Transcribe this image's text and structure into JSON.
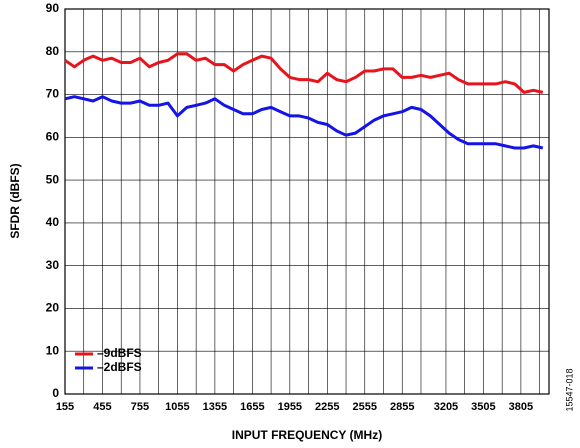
{
  "chart_data": {
    "type": "line",
    "xlabel": "INPUT FREQUENCY (MHz)",
    "ylabel": "SFDR (dBFS)",
    "annotation": "15547-018",
    "x": [
      155,
      230,
      305,
      380,
      455,
      530,
      605,
      680,
      755,
      830,
      905,
      980,
      1055,
      1130,
      1205,
      1280,
      1355,
      1430,
      1505,
      1580,
      1655,
      1730,
      1805,
      1880,
      1955,
      2030,
      2105,
      2180,
      2255,
      2330,
      2405,
      2480,
      2555,
      2630,
      2705,
      2780,
      2855,
      2930,
      3005,
      3080,
      3155,
      3230,
      3305,
      3380,
      3455,
      3530,
      3605,
      3680,
      3755,
      3830,
      3905,
      3980
    ],
    "series": [
      {
        "name": "–9dBFS",
        "color": "#e8141b",
        "values": [
          78,
          76.5,
          78,
          79,
          78,
          78.5,
          77.5,
          77.5,
          78.5,
          76.5,
          77.5,
          78,
          79.5,
          79.5,
          78,
          78.5,
          77,
          77,
          75.5,
          77,
          78,
          79,
          78.5,
          76,
          74,
          73.5,
          73.5,
          73,
          75,
          73.5,
          73,
          74,
          75.5,
          75.5,
          76,
          76,
          74,
          74,
          74.5,
          74,
          74.5,
          75,
          73.5,
          72.5,
          72.5,
          72.5,
          72.5,
          73,
          72.5,
          70.5,
          71,
          70.5
        ]
      },
      {
        "name": "–2dBFS",
        "color": "#1414e6",
        "values": [
          69,
          69.5,
          69,
          68.5,
          69.5,
          68.5,
          68,
          68,
          68.5,
          67.5,
          67.5,
          68,
          65,
          67,
          67.5,
          68,
          69,
          67.5,
          66.5,
          65.5,
          65.5,
          66.5,
          67,
          66,
          65,
          65,
          64.5,
          63.5,
          63,
          61.5,
          60.5,
          61,
          62.5,
          64,
          65,
          65.5,
          66,
          67,
          66.5,
          65,
          63,
          61,
          59.5,
          58.5,
          58.5,
          58.5,
          58.5,
          58,
          57.5,
          57.5,
          58,
          57.5
        ]
      }
    ],
    "xlim": [
      155,
      4030
    ],
    "xticks": [
      155,
      455,
      755,
      1055,
      1355,
      1655,
      1955,
      2255,
      2555,
      2855,
      3205,
      3505,
      3805
    ],
    "xminorticks": [
      305,
      605,
      905,
      1205,
      1505,
      1805,
      2105,
      2405,
      2705,
      3005,
      3355,
      3655,
      3955
    ],
    "ylim": [
      0,
      90
    ],
    "yticks": [
      0,
      10,
      20,
      30,
      40,
      50,
      60,
      70,
      80,
      90
    ],
    "grid": true,
    "legend": "lower left"
  }
}
